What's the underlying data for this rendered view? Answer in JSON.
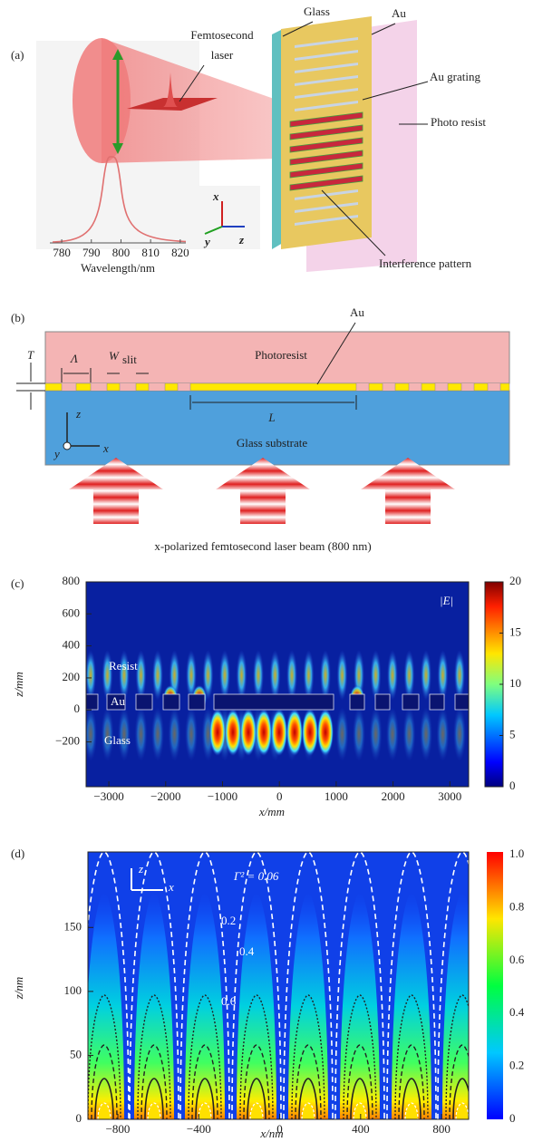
{
  "panel_a": {
    "label": "(a)",
    "laser": "Femtosecond",
    "laser2": "laser",
    "glass": "Glass",
    "au": "Au",
    "au_grating": "Au grating",
    "photo_resist": "Photo resist",
    "interference": "Interference pattern",
    "axis_x": "x",
    "axis_y": "y",
    "axis_z": "z",
    "spectrum": {
      "xlim": [
        776,
        828
      ],
      "xticks": [
        780,
        790,
        800,
        810,
        820
      ],
      "xlabel": "Wavelength/nm"
    }
  },
  "panel_b": {
    "label": "(b)",
    "T": "T",
    "Lambda": "Λ",
    "W": "W",
    "W_sub": "slit",
    "au": "Au",
    "photoresist": "Photoresist",
    "L": "L",
    "glass": "Glass substrate",
    "axis_z": "z",
    "axis_y": "y",
    "axis_x": "x",
    "caption": "x-polarized femtosecond laser beam (800 nm)"
  },
  "panel_c": {
    "label": "(c)",
    "xlabel": "x/mm",
    "ylabel": "z/mm",
    "field": "|E|",
    "resist": "Resist",
    "au": "Au",
    "glass": "Glass",
    "xlim": [
      -3400,
      3330
    ],
    "ylim": [
      -480,
      800
    ],
    "xticks": [
      {
        "value": -3000,
        "label": "−3000"
      },
      {
        "value": -2000,
        "label": "−2000"
      },
      {
        "value": -1000,
        "label": "−1000"
      },
      0,
      1000,
      2000,
      3000
    ],
    "yticks": [
      {
        "value": -200,
        "label": "−200"
      },
      0,
      200,
      400,
      600,
      800
    ],
    "colorbar": {
      "lim": [
        0,
        20
      ],
      "ticks": [
        0,
        5,
        10,
        15,
        20
      ]
    }
  },
  "panel_d": {
    "label": "(d)",
    "xlabel": "x/nm",
    "ylabel": "z/nm",
    "gamma": "Γ² = 0.06",
    "contour1": "0.2",
    "contour2": "0.4",
    "contour3": "0.6",
    "axis_z": "z",
    "axis_x": "x",
    "xlim": [
      -948,
      934
    ],
    "ylim": [
      0,
      209
    ],
    "xticks": [
      {
        "value": -800,
        "label": "−800"
      },
      {
        "value": -400,
        "label": "−400"
      },
      0,
      400,
      800
    ],
    "yticks": [
      0,
      50,
      100,
      150
    ],
    "colorbar": {
      "lim": [
        0,
        1
      ],
      "ticks": [
        0,
        0.2,
        0.4,
        0.6,
        0.8,
        {
          "value": 1,
          "label": "1.0"
        }
      ]
    }
  }
}
